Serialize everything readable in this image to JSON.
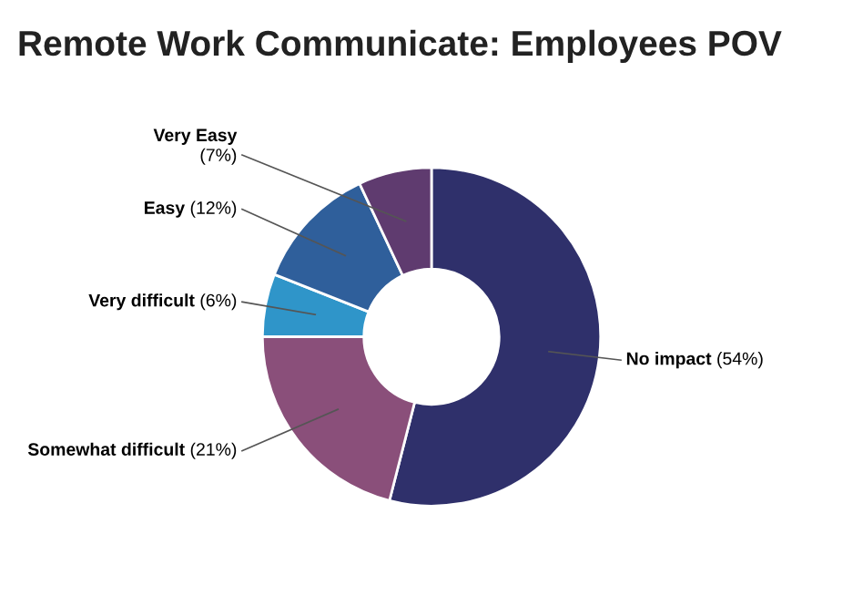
{
  "chart_data": {
    "type": "donut",
    "title": "Remote Work Communicate: Employees POV",
    "categories": [
      "No impact",
      "Somewhat difficult",
      "Very difficult",
      "Easy",
      "Very Easy"
    ],
    "values": [
      54,
      21,
      6,
      12,
      7
    ],
    "colors": [
      "#2f306b",
      "#8a4f7a",
      "#2f95c9",
      "#2f5f9b",
      "#5f3b6f"
    ],
    "value_labels": [
      "(54%)",
      "(21%)",
      "(6%)",
      "(12%)",
      "(7%)"
    ]
  }
}
